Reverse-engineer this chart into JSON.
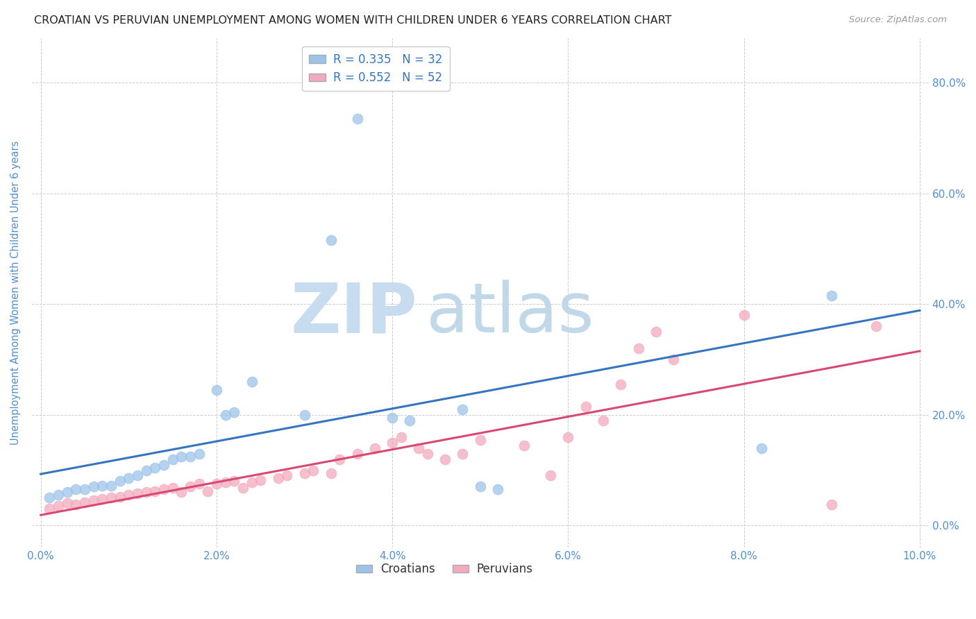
{
  "title": "CROATIAN VS PERUVIAN UNEMPLOYMENT AMONG WOMEN WITH CHILDREN UNDER 6 YEARS CORRELATION CHART",
  "source": "Source: ZipAtlas.com",
  "ylabel": "Unemployment Among Women with Children Under 6 years",
  "r_croatian": 0.335,
  "n_croatian": 32,
  "r_peruvian": 0.552,
  "n_peruvian": 52,
  "xlim": [
    -0.001,
    0.101
  ],
  "ylim": [
    -0.04,
    0.88
  ],
  "xticks": [
    0.0,
    0.02,
    0.04,
    0.06,
    0.08,
    0.1
  ],
  "yticks": [
    0.0,
    0.2,
    0.4,
    0.6,
    0.8
  ],
  "color_croatian": "#9DC3EA",
  "color_peruvian": "#F4AABE",
  "line_color_croatian": "#3575C0",
  "line_color_peruvian": "#D84870",
  "background_color": "#FFFFFF",
  "watermark_zip": "ZIP",
  "watermark_atlas": "atlas",
  "watermark_color_zip": "#C8DCF0",
  "watermark_color_atlas": "#C0D8E8",
  "croatian_x": [
    0.001,
    0.002,
    0.003,
    0.004,
    0.005,
    0.006,
    0.007,
    0.008,
    0.009,
    0.01,
    0.011,
    0.012,
    0.013,
    0.014,
    0.015,
    0.016,
    0.017,
    0.018,
    0.02,
    0.021,
    0.022,
    0.024,
    0.03,
    0.033,
    0.036,
    0.04,
    0.042,
    0.048,
    0.05,
    0.052,
    0.082,
    0.09
  ],
  "croatian_y": [
    0.05,
    0.055,
    0.06,
    0.065,
    0.065,
    0.07,
    0.072,
    0.072,
    0.08,
    0.085,
    0.09,
    0.1,
    0.105,
    0.11,
    0.12,
    0.125,
    0.125,
    0.13,
    0.245,
    0.2,
    0.205,
    0.26,
    0.2,
    0.515,
    0.735,
    0.195,
    0.19,
    0.21,
    0.07,
    0.065,
    0.14,
    0.415
  ],
  "peruvian_x": [
    0.001,
    0.002,
    0.003,
    0.004,
    0.005,
    0.006,
    0.007,
    0.008,
    0.009,
    0.01,
    0.011,
    0.012,
    0.013,
    0.014,
    0.015,
    0.016,
    0.017,
    0.018,
    0.019,
    0.02,
    0.021,
    0.022,
    0.023,
    0.024,
    0.025,
    0.027,
    0.028,
    0.03,
    0.031,
    0.033,
    0.034,
    0.036,
    0.038,
    0.04,
    0.041,
    0.043,
    0.044,
    0.046,
    0.048,
    0.05,
    0.055,
    0.058,
    0.06,
    0.062,
    0.064,
    0.066,
    0.068,
    0.07,
    0.072,
    0.08,
    0.09,
    0.095
  ],
  "peruvian_y": [
    0.03,
    0.035,
    0.04,
    0.038,
    0.042,
    0.045,
    0.048,
    0.05,
    0.052,
    0.055,
    0.058,
    0.06,
    0.062,
    0.065,
    0.068,
    0.06,
    0.07,
    0.075,
    0.062,
    0.075,
    0.078,
    0.08,
    0.068,
    0.078,
    0.082,
    0.085,
    0.09,
    0.095,
    0.1,
    0.095,
    0.12,
    0.13,
    0.14,
    0.15,
    0.16,
    0.14,
    0.13,
    0.12,
    0.13,
    0.155,
    0.145,
    0.09,
    0.16,
    0.215,
    0.19,
    0.255,
    0.32,
    0.35,
    0.3,
    0.38,
    0.038,
    0.36
  ]
}
